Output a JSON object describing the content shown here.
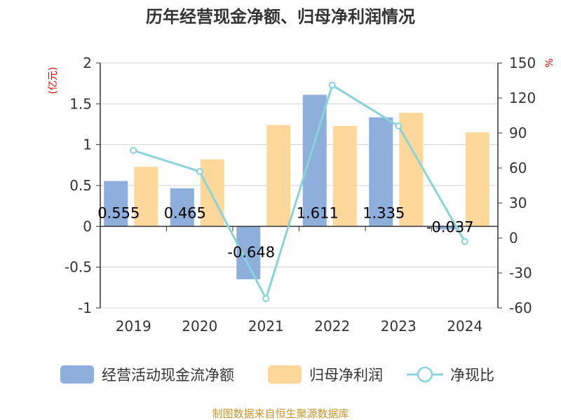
{
  "title": "历年经营现金净额、归母净利润情况",
  "source": "制图数据来自恒生聚源数据库",
  "chart_data": {
    "type": "bar",
    "categories": [
      "2019",
      "2020",
      "2021",
      "2022",
      "2023",
      "2024"
    ],
    "series": [
      {
        "name": "经营活动现金流净额",
        "type": "bar",
        "axis": "left",
        "color": "#8eaedb",
        "values": [
          0.555,
          0.465,
          -0.648,
          1.611,
          1.335,
          -0.037
        ],
        "labels": [
          "0.555",
          "0.465",
          "-0.648",
          "1.611",
          "1.335",
          "-0.037"
        ]
      },
      {
        "name": "归母净利润",
        "type": "bar",
        "axis": "left",
        "color": "#fdd89a",
        "values": [
          0.73,
          0.82,
          1.24,
          1.23,
          1.39,
          1.15
        ]
      },
      {
        "name": "净现比",
        "type": "line",
        "axis": "right",
        "color": "#88d4d8",
        "values": [
          75,
          57,
          -52,
          131,
          96,
          -3
        ]
      }
    ],
    "y_left": {
      "label": "(亿元)",
      "min": -1,
      "max": 2,
      "ticks": [
        "-1",
        "-0.5",
        "0",
        "0.5",
        "1",
        "1.5",
        "2"
      ]
    },
    "y_right": {
      "label": "%",
      "min": -60,
      "max": 150,
      "ticks": [
        "-60",
        "-30",
        "0",
        "30",
        "60",
        "90",
        "120",
        "150"
      ]
    },
    "grid": true,
    "legend_position": "bottom"
  }
}
